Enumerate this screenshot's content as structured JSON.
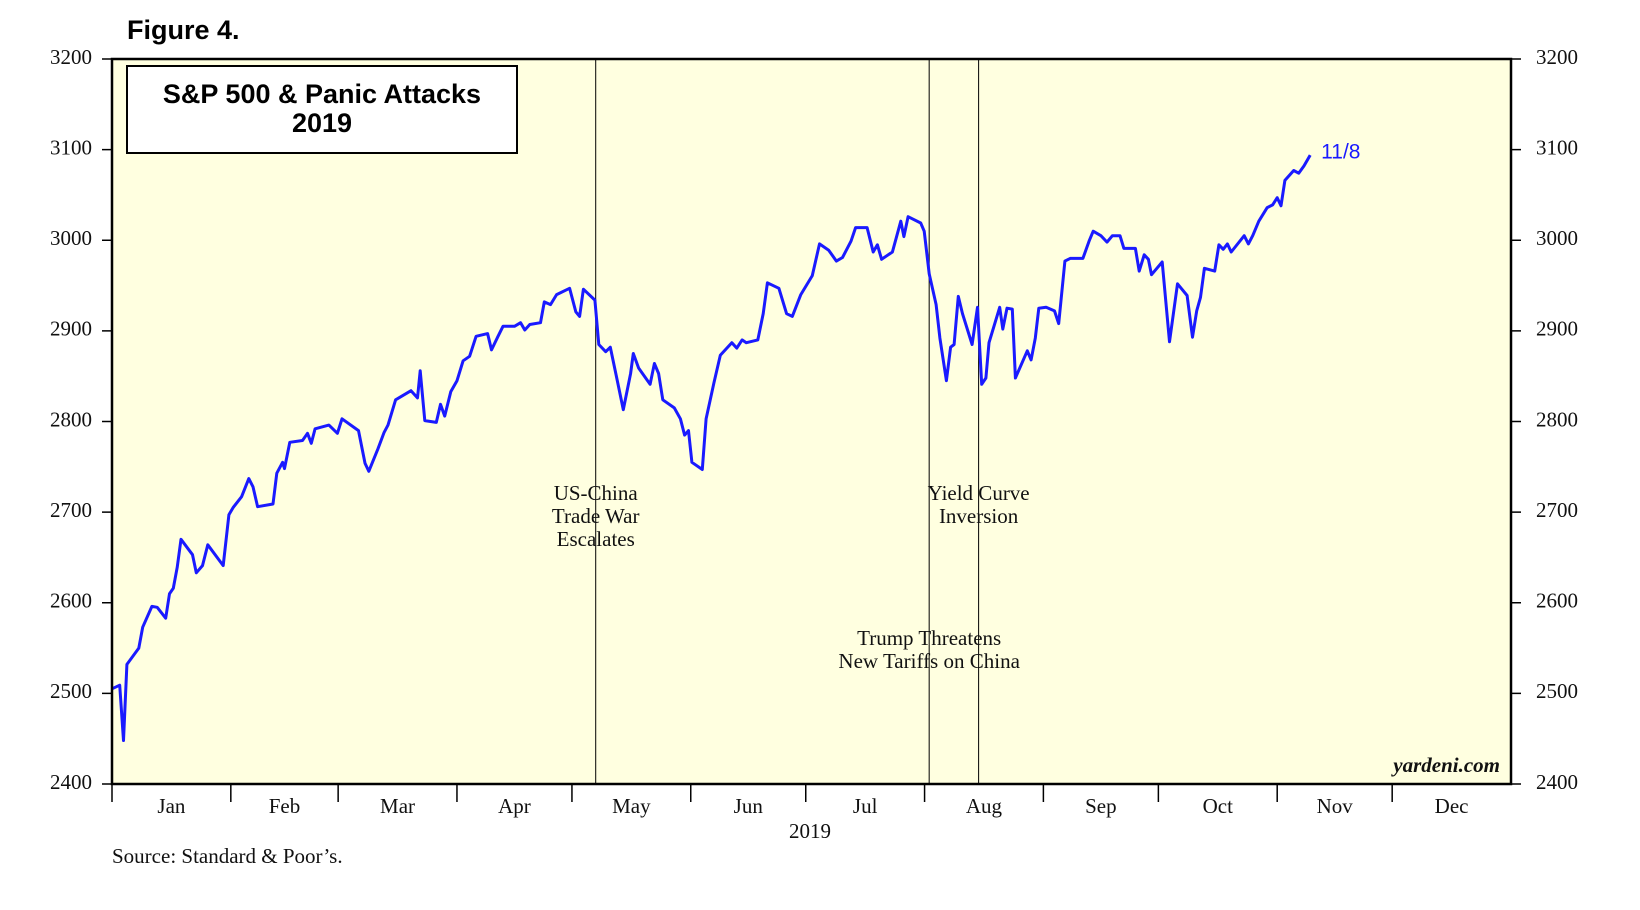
{
  "figure_label": "Figure 4.",
  "chart_data": {
    "type": "line",
    "title": "S&P 500 & Panic Attacks",
    "subtitle": "2019",
    "xlabel": "2019",
    "source": "Source: Standard & Poor’s.",
    "credit": "yardeni.com",
    "end_label": "11/8",
    "xlim": [
      1,
      366
    ],
    "xticks": [
      {
        "value": 1,
        "label": "Jan"
      },
      {
        "value": 32,
        "label": "Feb"
      },
      {
        "value": 60,
        "label": "Mar"
      },
      {
        "value": 91,
        "label": "Apr"
      },
      {
        "value": 121,
        "label": "May"
      },
      {
        "value": 152,
        "label": "Jun"
      },
      {
        "value": 182,
        "label": "Jul"
      },
      {
        "value": 213,
        "label": "Aug"
      },
      {
        "value": 244,
        "label": "Sep"
      },
      {
        "value": 274,
        "label": "Oct"
      },
      {
        "value": 305,
        "label": "Nov"
      },
      {
        "value": 335,
        "label": "Dec"
      }
    ],
    "ylim": [
      2400,
      3200
    ],
    "yticks": [
      2400,
      2500,
      2600,
      2700,
      2800,
      2900,
      3000,
      3100,
      3200
    ],
    "y2lim": [
      2400,
      3200
    ],
    "y2ticks": [
      2400,
      2500,
      2600,
      2700,
      2800,
      2900,
      3000,
      3100,
      3200
    ],
    "annotations": [
      {
        "x": 127.2,
        "lines": [
          "US-China",
          "Trade War",
          "Escalates"
        ]
      },
      {
        "x": 214.2,
        "lines": [
          "Trump Threatens",
          "New Tariffs on China"
        ]
      },
      {
        "x": 227.1,
        "lines": [
          "Yield Curve",
          "Inversion"
        ]
      }
    ],
    "series": [
      {
        "name": "S&P 500",
        "color": "#1a1aff",
        "x": [
          1,
          3,
          4,
          4.9,
          8,
          9,
          11.4,
          12.8,
          15,
          16,
          17,
          18,
          19,
          22,
          23,
          24.6,
          26,
          30,
          31.5,
          32.6,
          34.8,
          36.7,
          37.8,
          39,
          43,
          44,
          45.5,
          46,
          47.4,
          50.7,
          52,
          53,
          54,
          57.6,
          59.8,
          61,
          65.3,
          67,
          68,
          70.4,
          72,
          73,
          74,
          75,
          79,
          80.7,
          81.4,
          82.6,
          85.6,
          86.7,
          87.8,
          89.4,
          91,
          92.6,
          94.3,
          96,
          99,
          100,
          101.6,
          103,
          106,
          107.6,
          108.7,
          110,
          112.8,
          113.8,
          115.4,
          117,
          120.4,
          122,
          123,
          124,
          127,
          128,
          129.8,
          131,
          132.5,
          134.4,
          136.3,
          137,
          138.4,
          141.4,
          142.5,
          143.6,
          144.7,
          147.7,
          149.3,
          150.4,
          151.4,
          152.3,
          155,
          156,
          158,
          159.7,
          162.7,
          164,
          165.4,
          166.5,
          169.5,
          170.9,
          172,
          175,
          177,
          178.5,
          180.7,
          183.7,
          185.6,
          188,
          190,
          191.6,
          193.8,
          195,
          198,
          199.6,
          200.7,
          201.8,
          204.6,
          206.8,
          207.6,
          208.7,
          212,
          212.9,
          214.2,
          216,
          217,
          218.7,
          219.8,
          220.7,
          221.8,
          222.9,
          225.4,
          226.8,
          227.9,
          229,
          229.8,
          232.6,
          233.4,
          234.5,
          235.9,
          236.7,
          239.8,
          240.8,
          241.9,
          242.8,
          244.7,
          246.9,
          248,
          249.6,
          251,
          254.3,
          256,
          257,
          259,
          260.6,
          262,
          264,
          265,
          268,
          269,
          270.3,
          271.4,
          272.2,
          275,
          276.9,
          279,
          281.5,
          282.9,
          284,
          285,
          286,
          288.7,
          289.8,
          290.9,
          292,
          293,
          296.4,
          297.5,
          298.6,
          300.2,
          302.4,
          303.8,
          305,
          306,
          307,
          309.3,
          310.6,
          312,
          313.6
        ],
        "values": [
          2505,
          2509,
          2448,
          2532,
          2550,
          2573,
          2596,
          2595,
          2583,
          2610,
          2616,
          2639,
          2670,
          2653,
          2633,
          2641,
          2664,
          2641,
          2697,
          2705,
          2717,
          2737,
          2728,
          2706,
          2709,
          2743,
          2755,
          2748,
          2777,
          2779,
          2787,
          2776,
          2792,
          2796,
          2787,
          2803,
          2790,
          2754,
          2745,
          2770,
          2788,
          2796,
          2810,
          2824,
          2834,
          2826,
          2856,
          2801,
          2799,
          2819,
          2806,
          2833,
          2845,
          2867,
          2872,
          2894,
          2897,
          2879,
          2893,
          2905,
          2905,
          2909,
          2901,
          2907,
          2909,
          2932,
          2929,
          2940,
          2947,
          2921,
          2916,
          2946,
          2934,
          2885,
          2877,
          2882,
          2852,
          2813,
          2853,
          2875,
          2859,
          2841,
          2864,
          2853,
          2824,
          2815,
          2803,
          2785,
          2790,
          2755,
          2747,
          2803,
          2842,
          2873,
          2887,
          2881,
          2890,
          2887,
          2890,
          2919,
          2953,
          2947,
          2919,
          2916,
          2940,
          2961,
          2996,
          2989,
          2977,
          2981,
          2999,
          3014,
          3014,
          2987,
          2995,
          2979,
          2987,
          3021,
          3004,
          3026,
          3019,
          3010,
          2963,
          2929,
          2892,
          2845,
          2882,
          2885,
          2938,
          2919,
          2885,
          2926,
          2841,
          2848,
          2887,
          2926,
          2902,
          2925,
          2924,
          2848,
          2878,
          2868,
          2892,
          2925,
          2926,
          2922,
          2908,
          2977,
          2980,
          2980,
          3000,
          3010,
          3005,
          2998,
          3005,
          3005,
          2991,
          2991,
          2966,
          2984,
          2979,
          2962,
          2976,
          2888,
          2952,
          2939,
          2893,
          2922,
          2937,
          2969,
          2966,
          2995,
          2990,
          2996,
          2987,
          3005,
          2996,
          3005,
          3021,
          3036,
          3039,
          3047,
          3038,
          3066,
          3077,
          3074,
          3082,
          3094
        ]
      }
    ]
  }
}
